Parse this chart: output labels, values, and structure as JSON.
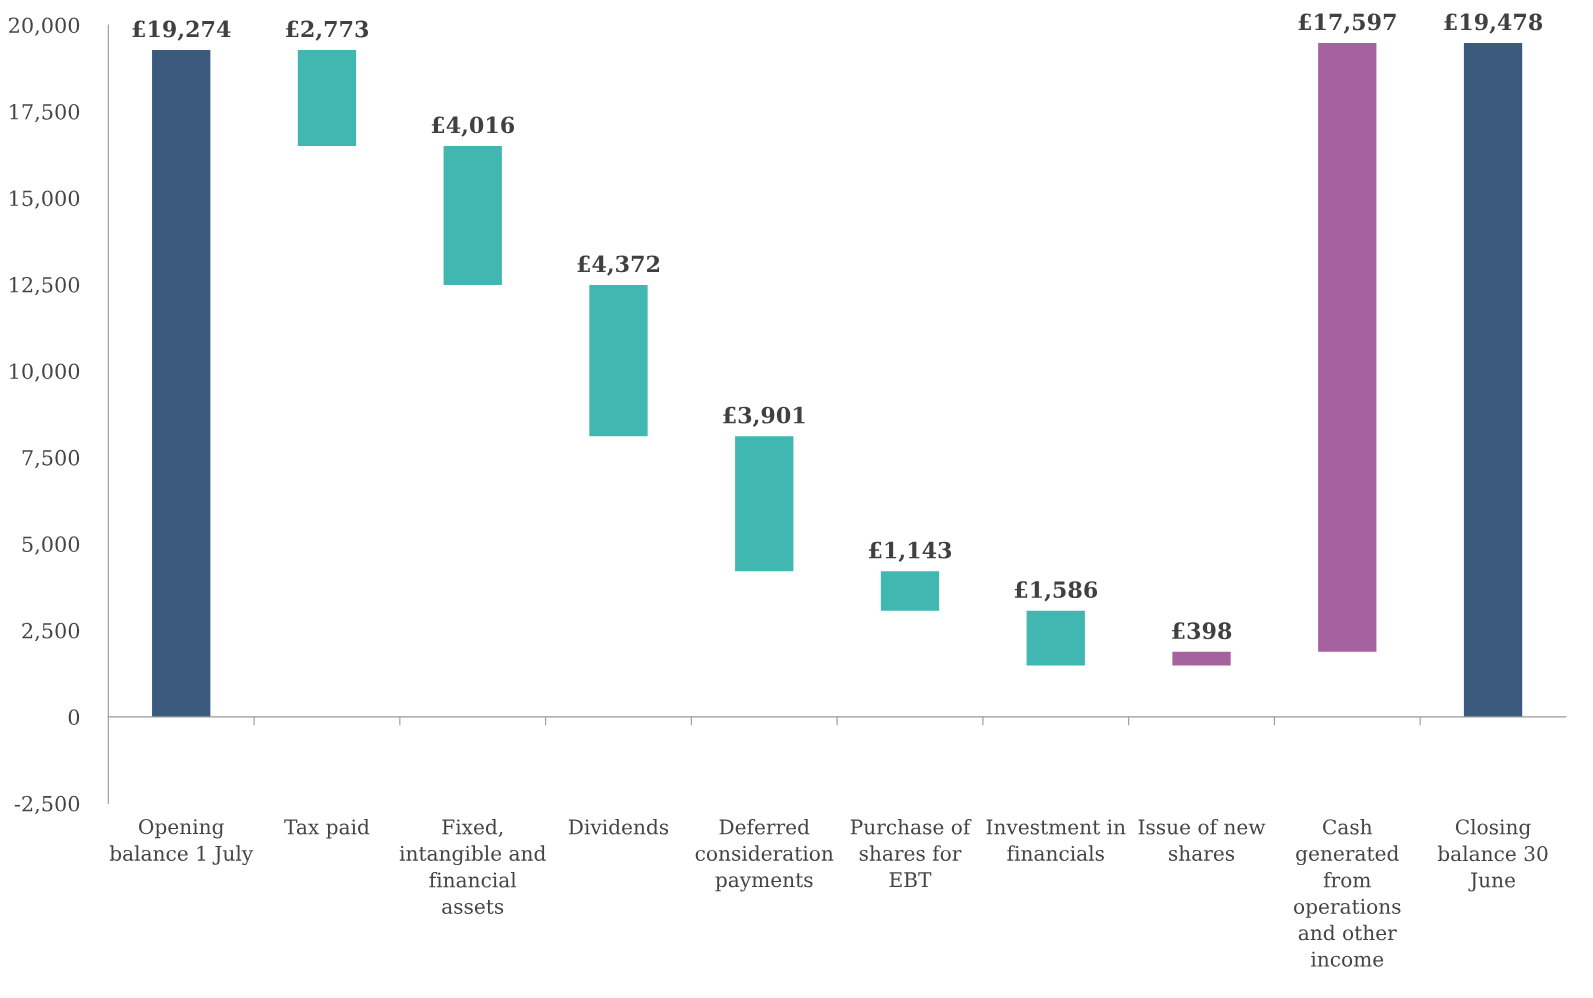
{
  "chart_data": {
    "type": "bar",
    "categories": [
      "Opening\nbalance 1 July",
      "Tax paid",
      "Fixed,\nintangible and\nfinancial\nassets",
      "Dividends",
      "Deferred\nconsideration\npayments",
      "Purchase of\nshares for\nEBT",
      "Investment in\nfinancials",
      "Issue of new\nshares",
      "Cash\ngenerated\nfrom\noperations\nand other\nincome",
      "Closing\nbalance 30\nJune"
    ],
    "values": [
      19274,
      2773,
      4016,
      4372,
      3901,
      1143,
      1586,
      398,
      17597,
      19478
    ],
    "base": [
      0,
      16501,
      12485,
      8113,
      4212,
      3069,
      1483,
      1483,
      1881,
      0
    ],
    "colors": [
      "#3c5a7e",
      "#40b7b0",
      "#40b7b0",
      "#40b7b0",
      "#40b7b0",
      "#40b7b0",
      "#40b7b0",
      "#a6629e",
      "#a6629e",
      "#3c5a7e"
    ],
    "value_labels": [
      "£19,274",
      "£2,773",
      "£4,016",
      "£4,372",
      "£3,901",
      "£1,143",
      "£1,586",
      "£398",
      "£17,597",
      "£19,478"
    ],
    "ylim": [
      -2500,
      20000
    ],
    "yticks": [
      {
        "value": -2500,
        "label": "-2,500"
      },
      0,
      {
        "value": 2500,
        "label": "2,500"
      },
      {
        "value": 5000,
        "label": "5,000"
      },
      {
        "value": 7500,
        "label": "7,500"
      },
      {
        "value": 10000,
        "label": "10,000"
      },
      {
        "value": 12500,
        "label": "12,500"
      },
      {
        "value": 15000,
        "label": "15,000"
      },
      {
        "value": 17500,
        "label": "17,500"
      },
      {
        "value": 20000,
        "label": "20,000"
      }
    ],
    "legend": false
  }
}
